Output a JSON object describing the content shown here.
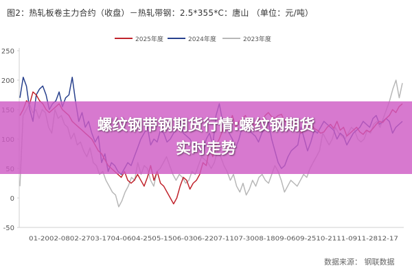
{
  "chart_data": {
    "type": "line",
    "title": "图2：热轧板卷主力合约（收盘）－热轧带钢：2.5*355*C：唐山 （单位：元/吨）",
    "source": "数据来源： 钢联数据",
    "ylim": [
      -50,
      250
    ],
    "yticks": [
      -50,
      0,
      50,
      100,
      150,
      200,
      250
    ],
    "x_tick_labels": [
      "01-20",
      "02-08",
      "02-27",
      "03-17",
      "04-06",
      "04-25",
      "05-15",
      "06-03",
      "06-22",
      "07-11",
      "07-30",
      "08-18",
      "09-06",
      "09-25",
      "10-21",
      "11-09",
      "11-28",
      "12-17"
    ],
    "legend_position": "top",
    "grid": false,
    "series": [
      {
        "name": "2025年度",
        "color": "#c0222b",
        "values": [
          140,
          150,
          165,
          160,
          180,
          175,
          165,
          160,
          150,
          145,
          150,
          155,
          160,
          150,
          145,
          140,
          130,
          125,
          120,
          115,
          110,
          105,
          100,
          90,
          80,
          75,
          65,
          55,
          50,
          45,
          40,
          35,
          45,
          30,
          25,
          30,
          40,
          30,
          20,
          35,
          55,
          30,
          45,
          25,
          20,
          10,
          0,
          -10,
          0,
          20,
          35,
          30,
          15,
          25,
          30,
          40,
          60,
          55,
          85,
          70,
          90,
          100,
          115,
          130,
          125,
          140,
          120,
          130,
          135,
          140,
          125,
          130,
          120,
          135,
          130,
          140,
          145,
          138,
          135,
          140,
          142,
          130,
          128,
          125,
          130,
          120,
          110,
          115,
          120,
          125,
          118,
          115,
          110,
          112,
          120,
          125,
          118,
          130,
          115,
          120,
          105,
          110,
          115,
          120,
          112,
          108,
          115,
          112,
          118,
          125,
          130,
          128,
          135,
          140,
          150,
          145,
          155,
          160
        ]
      },
      {
        "name": "2024年度",
        "color": "#263f8c",
        "values": [
          170,
          205,
          190,
          150,
          130,
          175,
          185,
          190,
          175,
          150,
          160,
          165,
          180,
          155,
          170,
          175,
          205,
          165,
          130,
          145,
          120,
          130,
          110,
          95,
          105,
          60,
          75,
          45,
          60,
          55,
          45,
          40,
          50,
          60,
          55,
          70,
          85,
          100,
          110,
          120,
          90,
          100,
          95,
          115,
          110,
          95,
          100,
          110,
          120,
          130,
          110,
          105,
          100,
          90,
          95,
          80,
          75,
          100,
          110,
          90,
          140,
          160,
          130,
          125,
          110,
          100,
          85,
          100,
          120,
          130,
          115,
          110,
          105,
          95,
          110,
          120,
          130,
          100,
          80,
          60,
          50,
          55,
          70,
          80,
          85,
          90,
          120,
          100,
          80,
          95,
          115,
          110,
          120,
          130,
          125,
          120,
          115,
          100,
          110,
          105,
          90,
          100,
          110,
          115,
          120,
          130,
          125,
          120,
          135,
          140,
          125,
          130,
          135,
          130,
          110,
          120,
          125,
          130
        ]
      },
      {
        "name": "2023年度",
        "color": "#b7b7b7",
        "values": [
          20,
          140,
          150,
          160,
          145,
          150,
          135,
          150,
          145,
          120,
          110,
          150,
          135,
          140,
          125,
          120,
          100,
          110,
          90,
          95,
          80,
          70,
          85,
          60,
          55,
          40,
          45,
          30,
          20,
          10,
          5,
          -15,
          -5,
          10,
          20,
          35,
          30,
          60,
          40,
          55,
          50,
          30,
          20,
          45,
          50,
          60,
          70,
          55,
          40,
          30,
          40,
          35,
          25,
          30,
          45,
          40,
          55,
          70,
          65,
          60,
          50,
          60,
          80,
          70,
          55,
          45,
          30,
          40,
          20,
          10,
          25,
          5,
          15,
          30,
          20,
          35,
          40,
          30,
          25,
          40,
          55,
          45,
          30,
          10,
          20,
          30,
          25,
          20,
          30,
          40,
          35,
          50,
          60,
          70,
          80,
          110,
          100,
          90,
          100,
          120,
          110,
          105,
          100,
          110,
          120,
          115,
          100,
          95,
          100,
          115,
          110,
          125,
          130,
          120,
          135,
          150,
          165,
          185,
          200,
          170,
          195
        ]
      }
    ]
  },
  "banner": {
    "line1": "螺纹钢带钢期货行情:螺纹钢期货",
    "line2": "实时走势"
  }
}
